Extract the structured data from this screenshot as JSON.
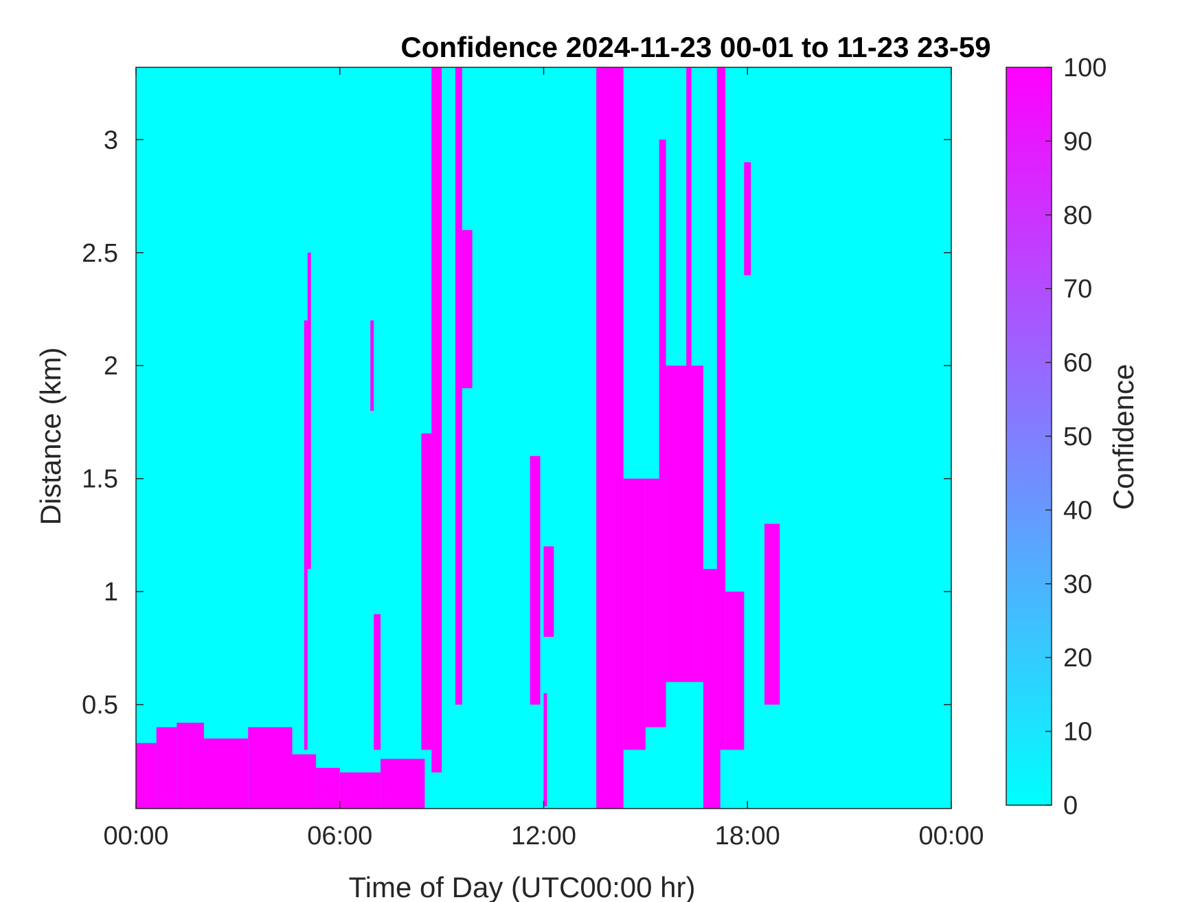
{
  "chart_data": {
    "type": "heatmap",
    "title": "Confidence 2024-11-23 00-01 to 11-23 23-59",
    "xlabel": "Time of Day (UTC00:00 hr)",
    "ylabel": "Distance (km)",
    "xlim_hours": [
      0,
      24
    ],
    "ylim_km": [
      0.04,
      3.32
    ],
    "x_ticks": [
      {
        "hour": 0,
        "label": "00:00"
      },
      {
        "hour": 6,
        "label": "06:00"
      },
      {
        "hour": 12,
        "label": "12:00"
      },
      {
        "hour": 18,
        "label": "18:00"
      },
      {
        "hour": 24,
        "label": "00:00"
      }
    ],
    "y_ticks": [
      {
        "km": 0.5,
        "label": "0.5"
      },
      {
        "km": 1,
        "label": "1"
      },
      {
        "km": 1.5,
        "label": "1.5"
      },
      {
        "km": 2,
        "label": "2"
      },
      {
        "km": 2.5,
        "label": "2.5"
      },
      {
        "km": 3,
        "label": "3"
      }
    ],
    "colorbar": {
      "label": "Confidence",
      "range": [
        0,
        100
      ],
      "ticks": [
        0,
        10,
        20,
        30,
        40,
        50,
        60,
        70,
        80,
        90,
        100
      ],
      "low_color": "#00FFFF",
      "high_color": "#FF00FF"
    },
    "background_value": 0,
    "high_confidence_value": 100,
    "high_confidence_regions": [
      {
        "t0": 0.0,
        "t1": 0.6,
        "d0": 0.04,
        "d1": 0.33
      },
      {
        "t0": 0.6,
        "t1": 1.2,
        "d0": 0.04,
        "d1": 0.4
      },
      {
        "t0": 1.2,
        "t1": 2.0,
        "d0": 0.04,
        "d1": 0.42
      },
      {
        "t0": 2.0,
        "t1": 3.3,
        "d0": 0.04,
        "d1": 0.35
      },
      {
        "t0": 3.3,
        "t1": 4.6,
        "d0": 0.04,
        "d1": 0.4
      },
      {
        "t0": 4.6,
        "t1": 5.3,
        "d0": 0.04,
        "d1": 0.28
      },
      {
        "t0": 5.3,
        "t1": 6.0,
        "d0": 0.04,
        "d1": 0.22
      },
      {
        "t0": 6.0,
        "t1": 7.2,
        "d0": 0.04,
        "d1": 0.2
      },
      {
        "t0": 7.2,
        "t1": 8.5,
        "d0": 0.04,
        "d1": 0.26
      },
      {
        "t0": 4.95,
        "t1": 5.05,
        "d0": 0.3,
        "d1": 2.2
      },
      {
        "t0": 5.05,
        "t1": 5.15,
        "d0": 1.1,
        "d1": 2.5
      },
      {
        "t0": 8.7,
        "t1": 9.0,
        "d0": 0.2,
        "d1": 3.32
      },
      {
        "t0": 8.4,
        "t1": 8.7,
        "d0": 0.3,
        "d1": 1.7
      },
      {
        "t0": 9.4,
        "t1": 9.6,
        "d0": 0.5,
        "d1": 3.32
      },
      {
        "t0": 9.6,
        "t1": 9.9,
        "d0": 1.9,
        "d1": 2.6
      },
      {
        "t0": 13.55,
        "t1": 14.35,
        "d0": 0.04,
        "d1": 3.32
      },
      {
        "t0": 14.35,
        "t1": 15.0,
        "d0": 0.3,
        "d1": 1.5
      },
      {
        "t0": 15.0,
        "t1": 15.6,
        "d0": 0.4,
        "d1": 1.5
      },
      {
        "t0": 15.6,
        "t1": 16.7,
        "d0": 0.6,
        "d1": 2.0
      },
      {
        "t0": 15.4,
        "t1": 15.6,
        "d0": 1.5,
        "d1": 3.0
      },
      {
        "t0": 16.7,
        "t1": 17.2,
        "d0": 0.04,
        "d1": 1.1
      },
      {
        "t0": 16.2,
        "t1": 16.35,
        "d0": 1.2,
        "d1": 3.32
      },
      {
        "t0": 17.1,
        "t1": 17.35,
        "d0": 0.3,
        "d1": 3.32
      },
      {
        "t0": 17.35,
        "t1": 17.9,
        "d0": 0.3,
        "d1": 1.0
      },
      {
        "t0": 17.9,
        "t1": 18.1,
        "d0": 2.4,
        "d1": 2.9
      },
      {
        "t0": 11.6,
        "t1": 11.9,
        "d0": 0.5,
        "d1": 1.6
      },
      {
        "t0": 12.0,
        "t1": 12.3,
        "d0": 0.8,
        "d1": 1.2
      },
      {
        "t0": 18.5,
        "t1": 18.95,
        "d0": 0.5,
        "d1": 1.3
      },
      {
        "t0": 7.0,
        "t1": 7.2,
        "d0": 0.3,
        "d1": 0.9
      },
      {
        "t0": 6.9,
        "t1": 7.0,
        "d0": 1.8,
        "d1": 2.2
      },
      {
        "t0": 12.0,
        "t1": 12.1,
        "d0": 0.05,
        "d1": 0.55
      }
    ]
  }
}
